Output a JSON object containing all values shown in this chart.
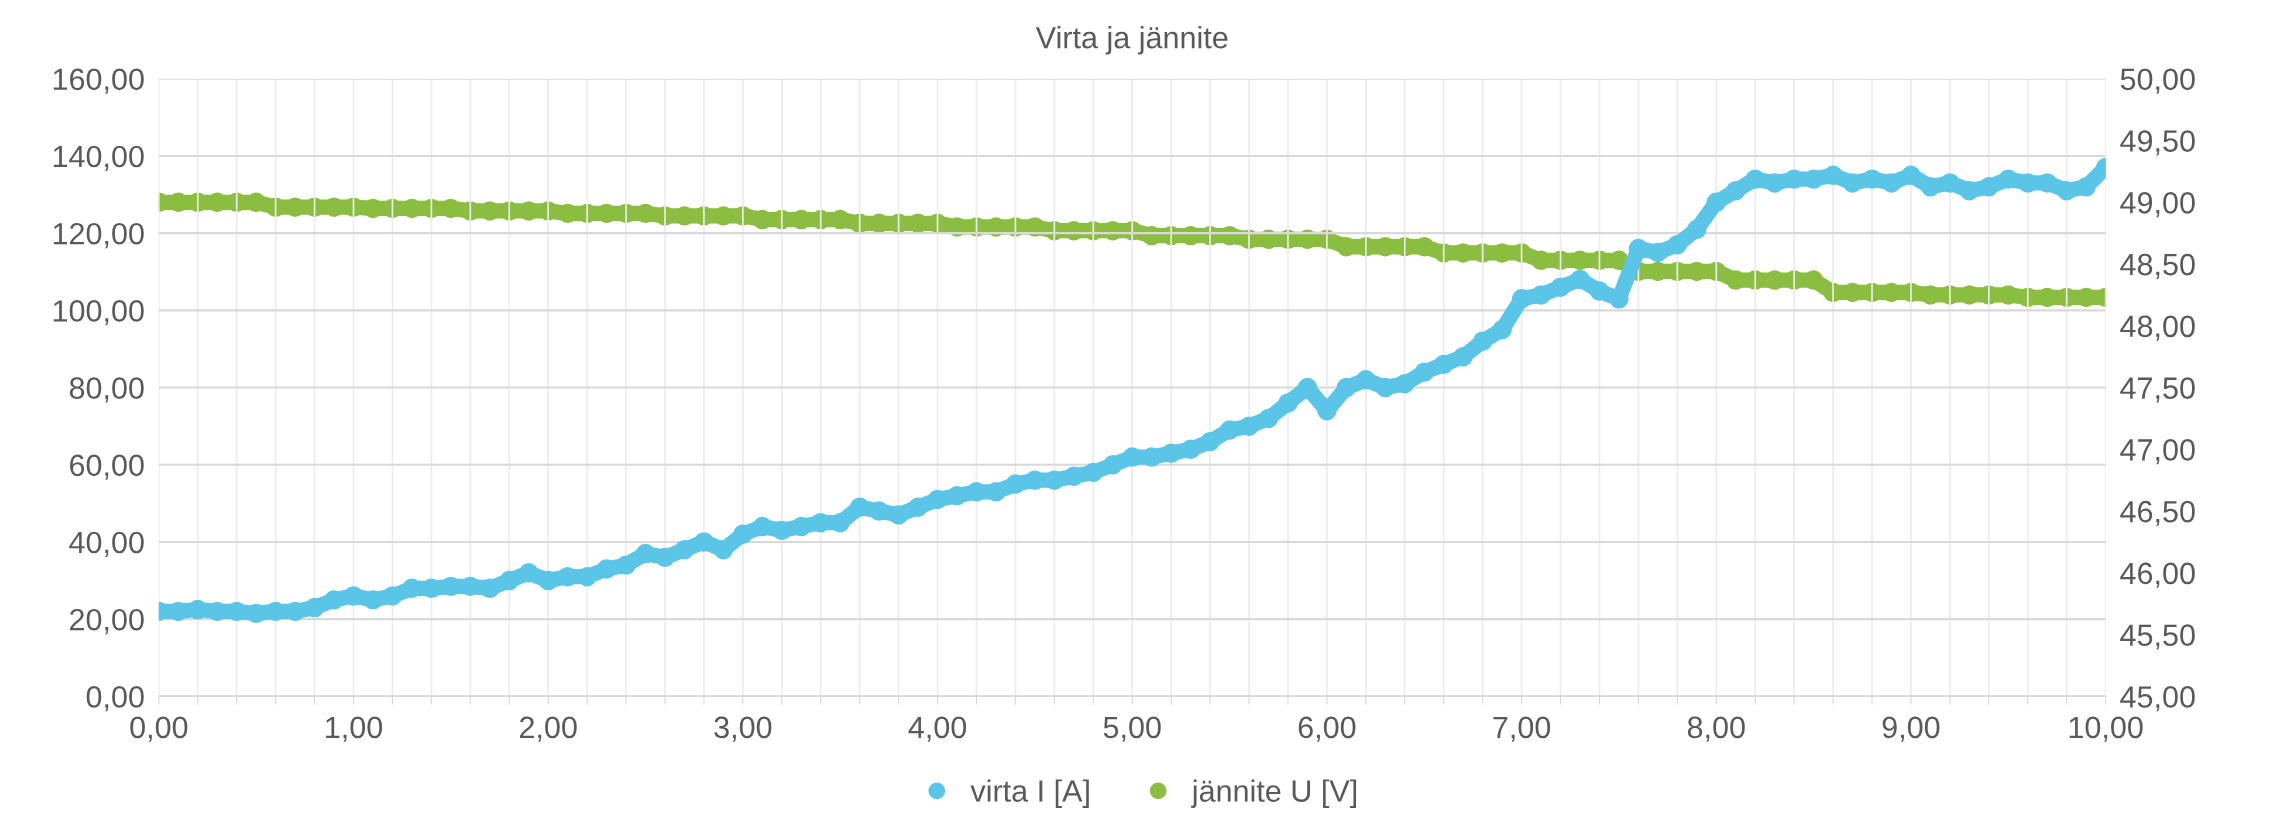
{
  "chart_data": {
    "type": "line",
    "title": "Virta ja jännite",
    "marker": "circle",
    "grid": true,
    "legend": "bottom",
    "x": [
      0,
      0.1,
      0.2,
      0.3,
      0.4,
      0.5,
      0.6,
      0.7,
      0.8,
      0.9,
      1.0,
      1.1,
      1.2,
      1.3,
      1.4,
      1.5,
      1.6,
      1.7,
      1.8,
      1.9,
      2.0,
      2.1,
      2.2,
      2.3,
      2.4,
      2.5,
      2.6,
      2.7,
      2.8,
      2.9,
      3.0,
      3.1,
      3.2,
      3.3,
      3.4,
      3.5,
      3.6,
      3.7,
      3.8,
      3.9,
      4.0,
      4.1,
      4.2,
      4.3,
      4.4,
      4.5,
      4.6,
      4.7,
      4.8,
      4.9,
      5.0,
      5.1,
      5.2,
      5.3,
      5.4,
      5.5,
      5.6,
      5.7,
      5.8,
      5.9,
      6.0,
      6.1,
      6.2,
      6.3,
      6.4,
      6.5,
      6.6,
      6.7,
      6.8,
      6.9,
      7.0,
      7.1,
      7.2,
      7.3,
      7.4,
      7.5,
      7.6,
      7.7,
      7.8,
      7.9,
      8.0,
      8.1,
      8.2,
      8.3,
      8.4,
      8.5,
      8.6,
      8.7,
      8.8,
      8.9,
      9.0,
      9.1,
      9.2,
      9.3,
      9.4,
      9.5,
      9.6,
      9.7,
      9.8,
      9.9,
      10.0
    ],
    "series": [
      {
        "name": "virta I [A]",
        "color": "#5bc5e8",
        "values": [
          22,
          22,
          22.5,
          22,
          22,
          21.5,
          22,
          22,
          23,
          25,
          26,
          25,
          26,
          28,
          28,
          28.5,
          28.5,
          28,
          30,
          32,
          30,
          31,
          31,
          33,
          34,
          37,
          36,
          38,
          40,
          38,
          42,
          44,
          43,
          44,
          45,
          45,
          49,
          48,
          47,
          49,
          51,
          52,
          53,
          53,
          55,
          56,
          56,
          57,
          58,
          60,
          62,
          62,
          63,
          64,
          66,
          69,
          70,
          72,
          76,
          80,
          74,
          80,
          82,
          80,
          81,
          84,
          86,
          88,
          92,
          95,
          103,
          104,
          106,
          108,
          105,
          103,
          116,
          115,
          117,
          121,
          128,
          131,
          134,
          133,
          134,
          134,
          135,
          133,
          134,
          133,
          135,
          132,
          133,
          131,
          132,
          134,
          133,
          133,
          131,
          132,
          137
        ]
      },
      {
        "name": "jännite U [V]",
        "color": "#8bbd40",
        "axis": "y2",
        "values": [
          49.0,
          49.0,
          49.0,
          49.0,
          49.0,
          49.0,
          48.96,
          48.96,
          48.96,
          48.96,
          48.96,
          48.95,
          48.95,
          48.95,
          48.95,
          48.95,
          48.93,
          48.93,
          48.93,
          48.93,
          48.93,
          48.91,
          48.91,
          48.91,
          48.91,
          48.91,
          48.89,
          48.89,
          48.89,
          48.89,
          48.89,
          48.86,
          48.86,
          48.86,
          48.86,
          48.86,
          48.83,
          48.83,
          48.83,
          48.83,
          48.83,
          48.8,
          48.8,
          48.8,
          48.8,
          48.8,
          48.77,
          48.77,
          48.77,
          48.77,
          48.77,
          48.73,
          48.73,
          48.73,
          48.73,
          48.73,
          48.7,
          48.7,
          48.7,
          48.7,
          48.7,
          48.64,
          48.64,
          48.64,
          48.64,
          48.64,
          48.59,
          48.59,
          48.59,
          48.59,
          48.59,
          48.53,
          48.53,
          48.53,
          48.53,
          48.53,
          48.44,
          48.44,
          48.44,
          48.44,
          48.44,
          48.37,
          48.37,
          48.37,
          48.37,
          48.37,
          48.27,
          48.27,
          48.27,
          48.27,
          48.27,
          48.25,
          48.25,
          48.25,
          48.25,
          48.25,
          48.23,
          48.23,
          48.23,
          48.23,
          48.23
        ]
      }
    ],
    "xlim": [
      0,
      10
    ],
    "ylim": [
      0,
      160
    ],
    "y2lim": [
      45,
      50
    ],
    "xticks": [
      {
        "value": 0,
        "label": "0,00"
      },
      {
        "value": 0.2,
        "label": null
      },
      {
        "value": 0.4,
        "label": null
      },
      {
        "value": 0.6,
        "label": null
      },
      {
        "value": 0.8,
        "label": null
      },
      {
        "value": 1,
        "label": "1,00"
      },
      {
        "value": 1.2,
        "label": null
      },
      {
        "value": 1.4,
        "label": null
      },
      {
        "value": 1.6,
        "label": null
      },
      {
        "value": 1.8,
        "label": null
      },
      {
        "value": 2,
        "label": "2,00"
      },
      {
        "value": 2.2,
        "label": null
      },
      {
        "value": 2.4,
        "label": null
      },
      {
        "value": 2.6,
        "label": null
      },
      {
        "value": 2.8,
        "label": null
      },
      {
        "value": 3,
        "label": "3,00"
      },
      {
        "value": 3.2,
        "label": null
      },
      {
        "value": 3.4,
        "label": null
      },
      {
        "value": 3.6,
        "label": null
      },
      {
        "value": 3.8,
        "label": null
      },
      {
        "value": 4,
        "label": "4,00"
      },
      {
        "value": 4.2,
        "label": null
      },
      {
        "value": 4.4,
        "label": null
      },
      {
        "value": 4.6,
        "label": null
      },
      {
        "value": 4.8,
        "label": null
      },
      {
        "value": 5,
        "label": "5,00"
      },
      {
        "value": 5.2,
        "label": null
      },
      {
        "value": 5.4,
        "label": null
      },
      {
        "value": 5.6,
        "label": null
      },
      {
        "value": 5.8,
        "label": null
      },
      {
        "value": 6,
        "label": "6,00"
      },
      {
        "value": 6.2,
        "label": null
      },
      {
        "value": 6.4,
        "label": null
      },
      {
        "value": 6.6,
        "label": null
      },
      {
        "value": 6.8,
        "label": null
      },
      {
        "value": 7,
        "label": "7,00"
      },
      {
        "value": 7.2,
        "label": null
      },
      {
        "value": 7.4,
        "label": null
      },
      {
        "value": 7.6,
        "label": null
      },
      {
        "value": 7.8,
        "label": null
      },
      {
        "value": 8,
        "label": "8,00"
      },
      {
        "value": 8.2,
        "label": null
      },
      {
        "value": 8.4,
        "label": null
      },
      {
        "value": 8.6,
        "label": null
      },
      {
        "value": 8.8,
        "label": null
      },
      {
        "value": 9,
        "label": "9,00"
      },
      {
        "value": 9.2,
        "label": null
      },
      {
        "value": 9.4,
        "label": null
      },
      {
        "value": 9.6,
        "label": null
      },
      {
        "value": 9.8,
        "label": null
      },
      {
        "value": 10,
        "label": "10,00"
      }
    ],
    "yticks": [
      {
        "value": 0,
        "label": "0,00"
      },
      {
        "value": 20,
        "label": "20,00"
      },
      {
        "value": 40,
        "label": "40,00"
      },
      {
        "value": 60,
        "label": "60,00"
      },
      {
        "value": 80,
        "label": "80,00"
      },
      {
        "value": 100,
        "label": "100,00"
      },
      {
        "value": 120,
        "label": "120,00"
      },
      {
        "value": 140,
        "label": "140,00"
      },
      {
        "value": 160,
        "label": "160,00"
      }
    ],
    "y2ticks": [
      {
        "value": 45,
        "label": "45,00"
      },
      {
        "value": 45.5,
        "label": "45,50"
      },
      {
        "value": 46,
        "label": "46,00"
      },
      {
        "value": 46.5,
        "label": "46,50"
      },
      {
        "value": 47,
        "label": "47,00"
      },
      {
        "value": 47.5,
        "label": "47,50"
      },
      {
        "value": 48,
        "label": "48,00"
      },
      {
        "value": 48.5,
        "label": "48,50"
      },
      {
        "value": 49,
        "label": "49,00"
      },
      {
        "value": 49.5,
        "label": "49,50"
      },
      {
        "value": 50,
        "label": "50,00"
      }
    ]
  }
}
